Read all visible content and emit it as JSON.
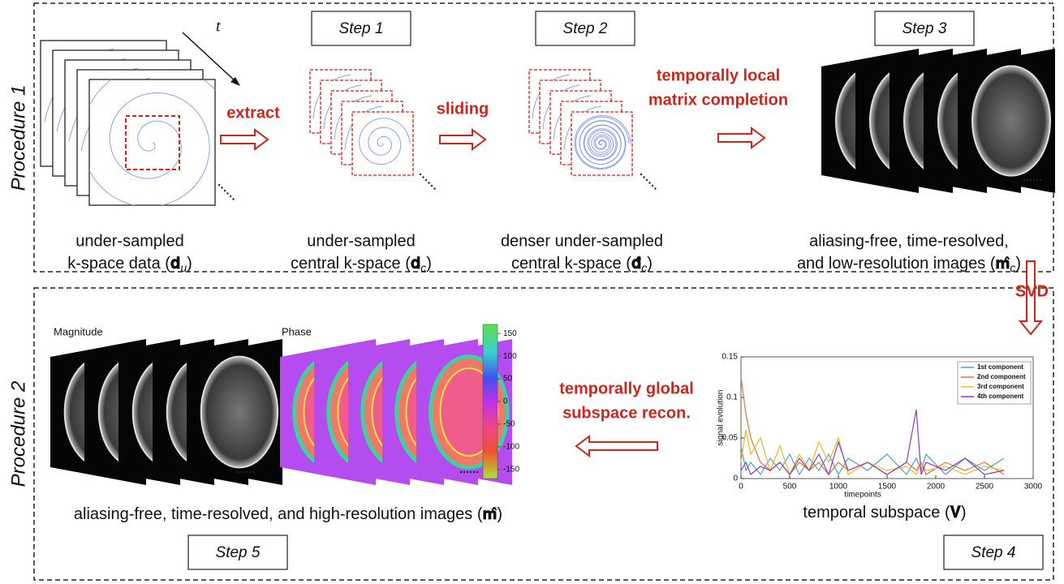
{
  "procedure1": {
    "label": "Procedure 1",
    "t": "t",
    "steps": [
      "Step 1",
      "Step 2",
      "Step 3"
    ],
    "actions": [
      "extract",
      "sliding"
    ],
    "completion": [
      "temporally local",
      "matrix completion"
    ],
    "captions": [
      {
        "lines": [
          "under-sampled",
          "k-space data ("
        ],
        "symbol": "𝐝",
        "sub": "u",
        "close": ")"
      },
      {
        "lines": [
          "under-sampled",
          "central k-space ("
        ],
        "symbol": "𝐝",
        "sub": "c",
        "close": ")"
      },
      {
        "lines": [
          "denser under-sampled",
          "central k-space ("
        ],
        "symbol": "𝐝̂",
        "sub": "c",
        "close": ")"
      },
      {
        "lines": [
          "aliasing-free, time-resolved,",
          "and low-resolution images ("
        ],
        "symbol": "𝐦̂",
        "sub": "c",
        "close": ")"
      }
    ]
  },
  "procedure2": {
    "label": "Procedure 2",
    "svd": "SVD",
    "steps": [
      "Step 4",
      "Step 5"
    ],
    "magnitude": "Magnitude",
    "phase": "Phase",
    "colorbar_ticks": [
      150,
      100,
      50,
      0,
      -50,
      -100,
      -150
    ],
    "recon": [
      "temporally global",
      "subspace recon."
    ],
    "images_caption": {
      "text": "aliasing-free, time-resolved, and high-resolution images (",
      "symbol": "𝐦̂",
      "close": ")"
    },
    "subspace_caption": {
      "text": "temporal subspace (",
      "symbol": "𝐕",
      "close": ")"
    },
    "plot": {
      "type": "line",
      "xlabel": "timepoints",
      "ylabel": "signal evolution",
      "xlim": [
        0,
        3000
      ],
      "xticks": [
        0,
        500,
        1000,
        1500,
        2000,
        2500,
        3000
      ],
      "ylim": [
        0,
        0.15
      ],
      "yticks": [
        0,
        0.05,
        0.1,
        0.15
      ],
      "x": [
        0,
        50,
        100,
        200,
        300,
        400,
        500,
        600,
        700,
        800,
        900,
        1000,
        1100,
        1300,
        1500,
        1700,
        1800,
        1850,
        1900,
        2100,
        2300,
        2500,
        2700
      ],
      "series": [
        {
          "name": "1st component",
          "color": "#4a9fd8",
          "values": [
            0.04,
            0.01,
            0.02,
            0.005,
            0.025,
            0.01,
            0.03,
            0.005,
            0.025,
            0.01,
            0.03,
            0.005,
            0.025,
            0.01,
            0.03,
            0.005,
            0.025,
            0.01,
            0.03,
            0.005,
            0.025,
            0.01,
            0.025
          ]
        },
        {
          "name": "2nd component",
          "color": "#e0743a",
          "values": [
            0.125,
            0.08,
            0.05,
            0.02,
            0.01,
            0.02,
            0.005,
            0.02,
            0.01,
            0.02,
            0.005,
            0.02,
            0.01,
            0.02,
            0.005,
            0.02,
            0.01,
            0.02,
            0.005,
            0.02,
            0.01,
            0.02,
            0.005
          ]
        },
        {
          "name": "3rd component",
          "color": "#e8b830",
          "values": [
            0.02,
            0.06,
            0.03,
            0.05,
            0.01,
            0.04,
            0.005,
            0.03,
            0.01,
            0.045,
            0.02,
            0.05,
            0.005,
            0.02,
            0.01,
            0.015,
            0.005,
            0.02,
            0.01,
            0.015,
            0.005,
            0.015,
            0.01
          ]
        },
        {
          "name": "4th component",
          "color": "#8e3fb0",
          "values": [
            0.01,
            0.02,
            0.005,
            0.015,
            0.01,
            0.02,
            0.005,
            0.025,
            0.01,
            0.03,
            0.005,
            0.045,
            0.01,
            0.02,
            0.005,
            0.02,
            0.085,
            0.005,
            0.02,
            0.01,
            0.025,
            0.005,
            0.01
          ]
        }
      ]
    }
  }
}
